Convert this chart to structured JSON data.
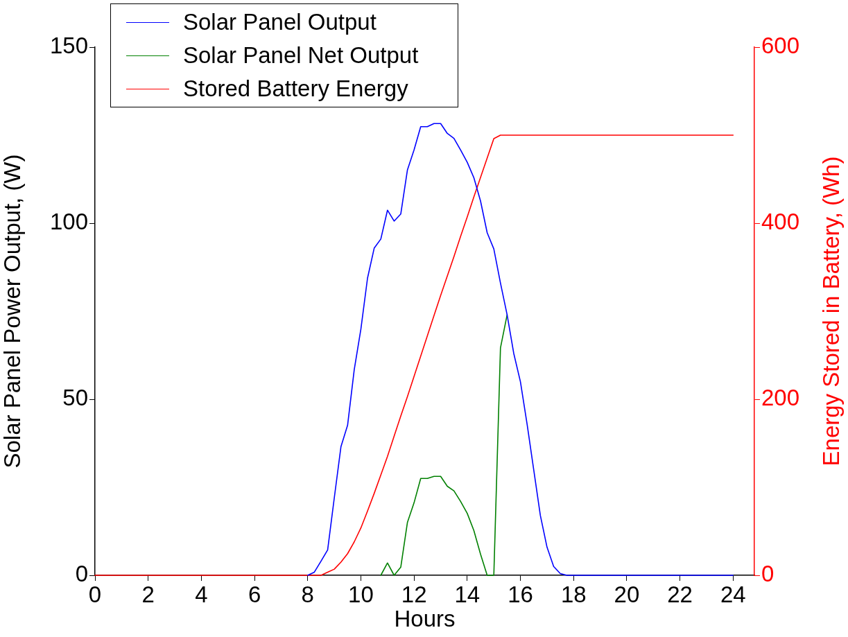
{
  "chart_data": {
    "type": "line",
    "xlabel": "Hours",
    "ylabel": "Solar Panel Power Output, (W)",
    "y2label": "Energy Stored in Battery, (Wh)",
    "x": [
      0,
      8,
      8.25,
      8.5,
      8.75,
      9,
      9.25,
      9.5,
      9.75,
      10,
      10.25,
      10.5,
      10.75,
      11,
      11.25,
      11.5,
      11.75,
      12,
      12.25,
      12.5,
      12.75,
      13,
      13.25,
      13.5,
      13.75,
      14,
      14.25,
      14.5,
      14.75,
      15,
      15.25,
      15.5,
      15.75,
      16,
      16.25,
      16.5,
      16.75,
      17,
      17.25,
      17.5,
      17.75,
      24
    ],
    "series": [
      {
        "name": "Solar Panel Output",
        "color": "#0000ff",
        "values": [
          null,
          0,
          0.9,
          4,
          7.2,
          22,
          36.5,
          42.6,
          58.4,
          69.9,
          84.4,
          92.9,
          95.5,
          103.7,
          100.6,
          102.6,
          115.1,
          120.8,
          127.4,
          127.4,
          128.3,
          128.3,
          125.5,
          124.1,
          120.8,
          117.3,
          112.9,
          106.3,
          97.3,
          92.7,
          83,
          74,
          63,
          55,
          43,
          30,
          17,
          8,
          2.5,
          0.5,
          0,
          0
        ]
      },
      {
        "name": "Solar Panel Net Output",
        "color": "#008000",
        "values": [
          null,
          null,
          null,
          null,
          null,
          null,
          null,
          null,
          null,
          null,
          null,
          null,
          0,
          3.5,
          0,
          2.3,
          15,
          20.6,
          27.5,
          27.5,
          28.1,
          28.1,
          25.3,
          24,
          21,
          17.6,
          12.7,
          6,
          0,
          0,
          64.6,
          74,
          null,
          null,
          null,
          null,
          null,
          null,
          null,
          null,
          null,
          null
        ]
      },
      {
        "name": "Stored Battery Energy",
        "color": "#ff0000",
        "axis": "y2",
        "values": [
          0,
          0,
          0,
          0,
          3.5,
          7,
          15,
          24.6,
          38,
          53.8,
          73,
          93,
          114,
          135,
          158,
          181,
          203,
          226,
          249,
          272,
          295,
          318,
          340,
          362,
          385,
          407,
          430,
          452,
          474,
          496,
          500,
          500,
          500,
          500,
          500,
          500,
          500,
          500,
          500,
          500,
          500,
          500
        ]
      }
    ],
    "xlim": [
      0,
      24.8
    ],
    "xticks": [
      0,
      2,
      4,
      6,
      8,
      10,
      12,
      14,
      16,
      18,
      20,
      22,
      24
    ],
    "ylim": [
      0,
      150
    ],
    "yticks": [
      0,
      50,
      100,
      150
    ],
    "y2lim": [
      0,
      600
    ],
    "y2ticks": [
      0,
      200,
      400,
      600
    ],
    "grid": false,
    "legend": "top left",
    "marker": "none",
    "line_style": "solid"
  }
}
